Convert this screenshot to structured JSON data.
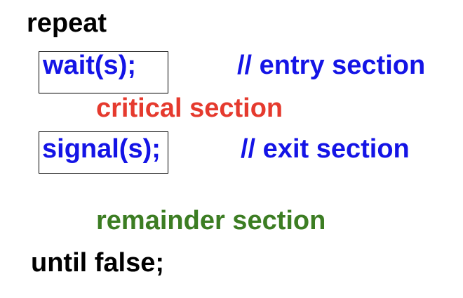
{
  "code": {
    "repeat": "repeat",
    "wait_call": "wait(s);",
    "entry_comment": "// entry section",
    "critical": "critical section",
    "signal_call": "signal(s);",
    "exit_comment": "// exit section",
    "remainder": "remainder section",
    "until": "until false;"
  },
  "colors": {
    "keyword": "#000000",
    "code": "#1414e6",
    "critical": "#e53a2e",
    "remainder": "#3c7d23"
  }
}
